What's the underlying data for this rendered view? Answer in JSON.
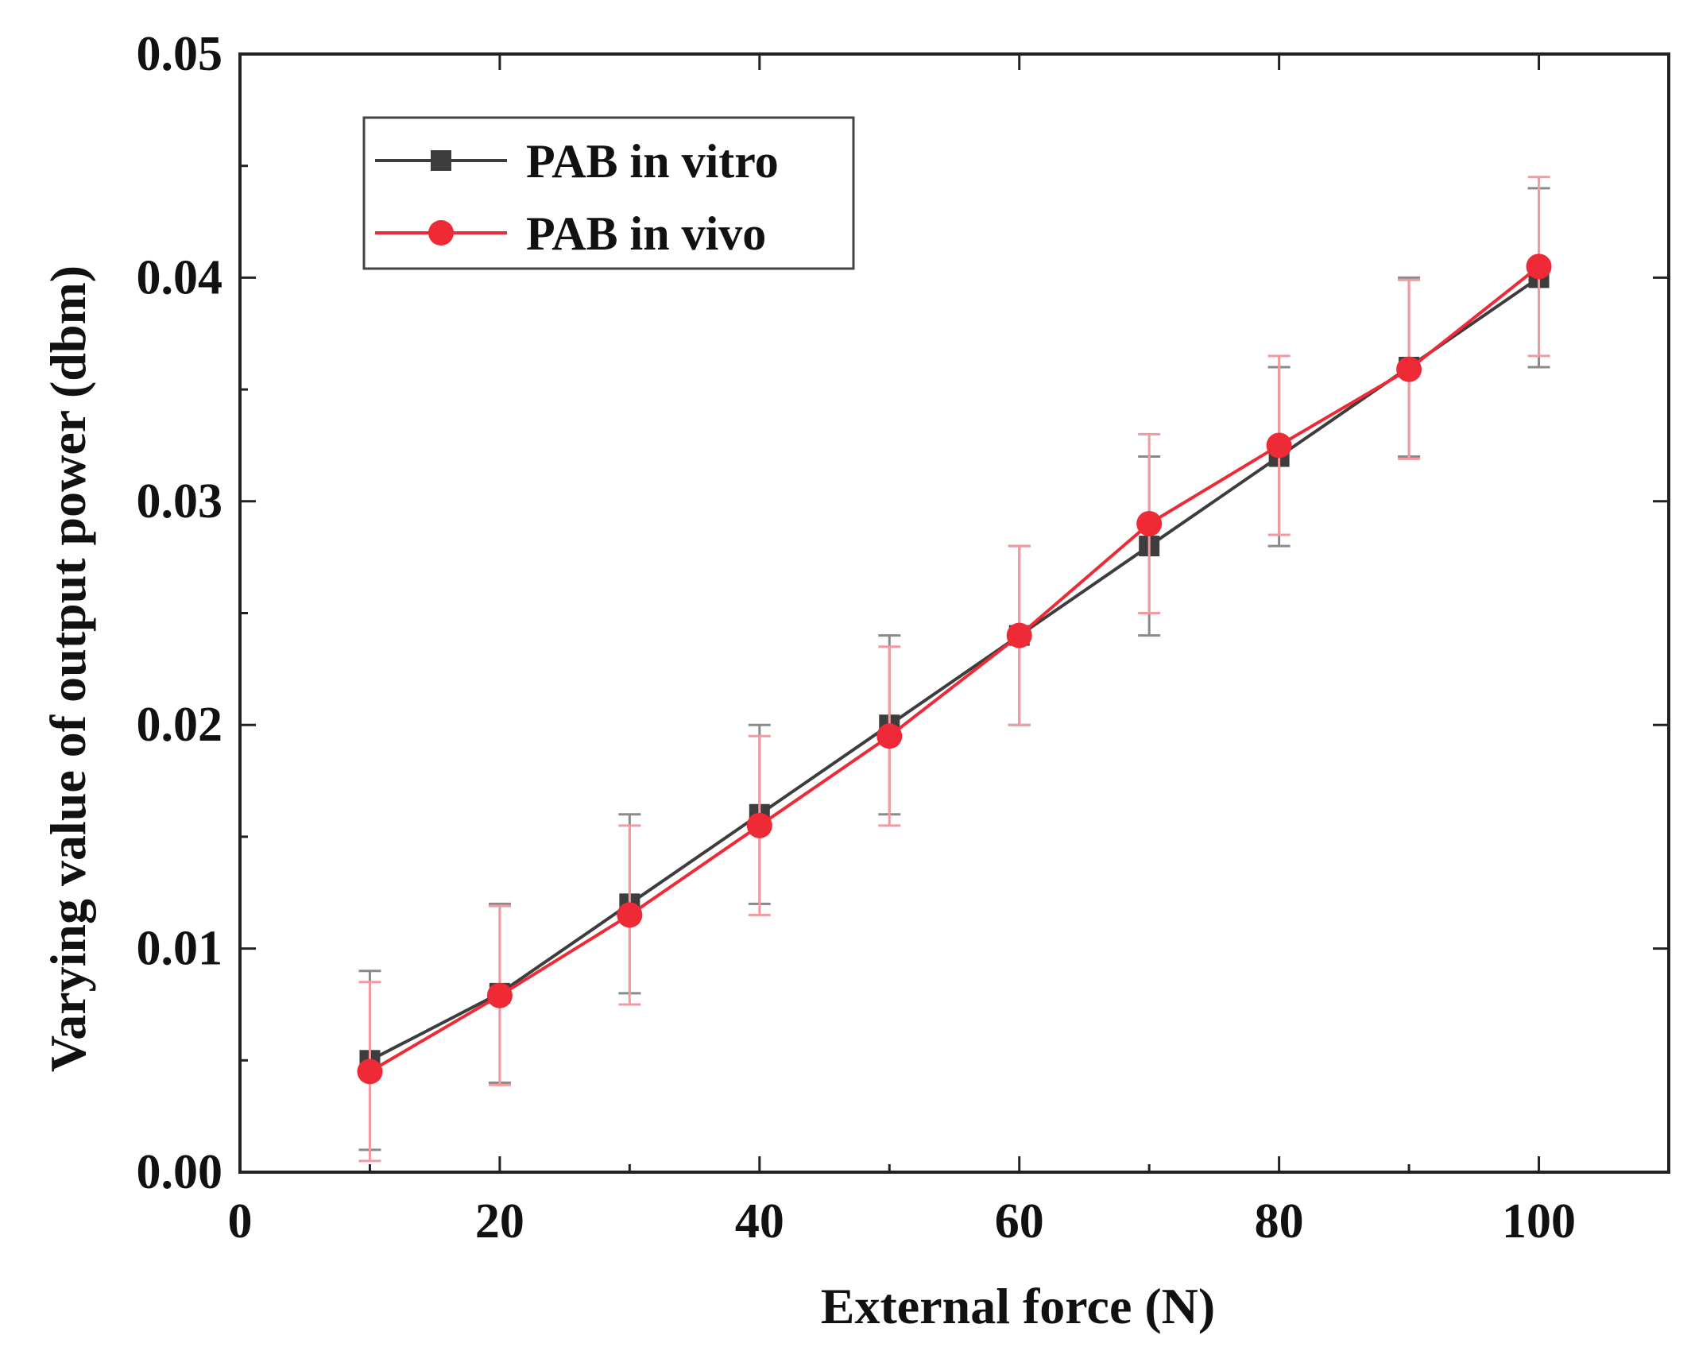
{
  "chart_data": {
    "type": "line",
    "title": "",
    "xlabel": "External force (N)",
    "ylabel": "Varying value of output power (dbm)",
    "xlim": [
      0,
      110
    ],
    "ylim": [
      0,
      0.05
    ],
    "xticks": [
      0,
      20,
      40,
      60,
      80,
      100
    ],
    "xtick_labels": [
      "0",
      "20",
      "40",
      "60",
      "80",
      "100"
    ],
    "yticks": [
      0,
      0.01,
      0.02,
      0.03,
      0.04,
      0.05
    ],
    "ytick_labels": [
      "0.00",
      "0.01",
      "0.02",
      "0.03",
      "0.04",
      "0.05"
    ],
    "grid": false,
    "legend_position": "top-left",
    "series": [
      {
        "name": "PAB in vitro",
        "color": "#3d3d3d",
        "error_color": "#8a8a8a",
        "marker": "square",
        "x": [
          10,
          20,
          30,
          40,
          50,
          60,
          70,
          80,
          90,
          100
        ],
        "y": [
          0.005,
          0.008,
          0.012,
          0.016,
          0.02,
          0.024,
          0.028,
          0.032,
          0.036,
          0.04
        ],
        "error": [
          0.004,
          0.004,
          0.004,
          0.004,
          0.004,
          0.004,
          0.004,
          0.004,
          0.004,
          0.004
        ]
      },
      {
        "name": "PAB in vivo",
        "color": "#ee2a36",
        "error_color": "#f39aa0",
        "marker": "circle",
        "x": [
          10,
          20,
          30,
          40,
          50,
          60,
          70,
          80,
          90,
          100
        ],
        "y": [
          0.0045,
          0.0079,
          0.0115,
          0.0155,
          0.0195,
          0.024,
          0.029,
          0.0325,
          0.0359,
          0.0405
        ],
        "error": [
          0.004,
          0.004,
          0.004,
          0.004,
          0.004,
          0.004,
          0.004,
          0.004,
          0.004,
          0.004
        ]
      }
    ]
  }
}
